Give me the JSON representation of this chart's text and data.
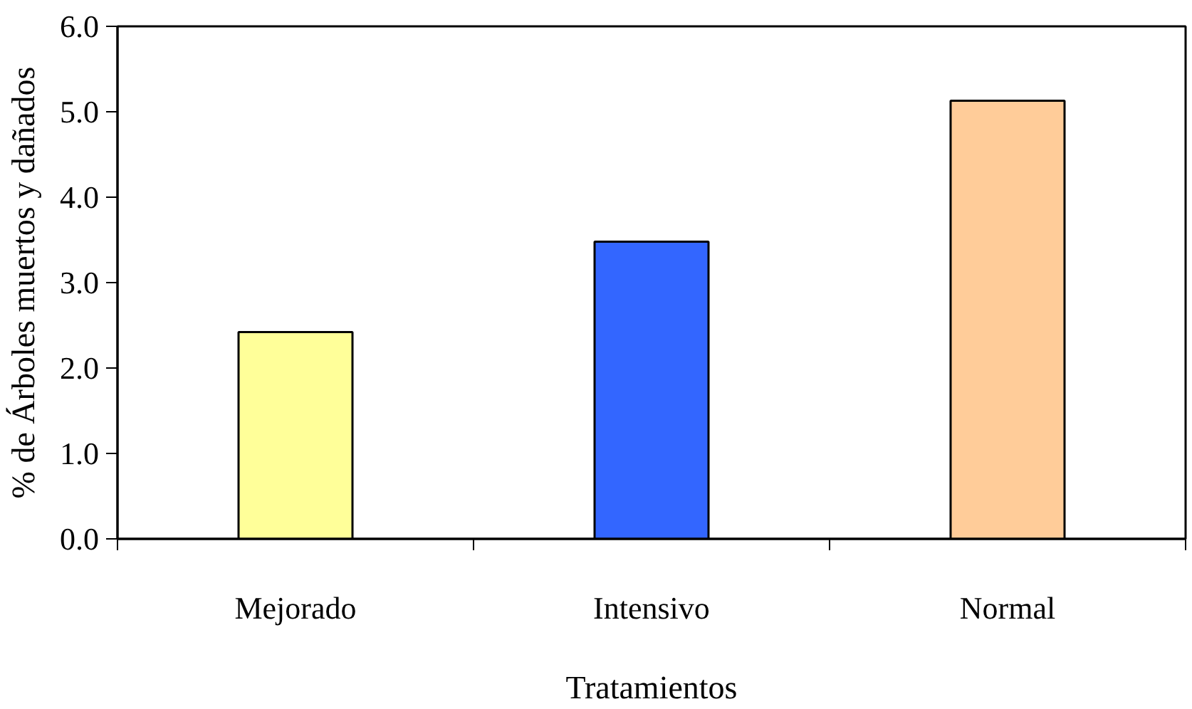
{
  "chart_data": {
    "type": "bar",
    "xlabel": "Tratamientos",
    "ylabel": "% de Árboles muertos y dañados",
    "categories": [
      "Mejorado",
      "Intensivo",
      "Normal"
    ],
    "values": [
      2.42,
      3.48,
      5.13
    ],
    "colors": [
      "#ffff99",
      "#3366ff",
      "#ffcc99"
    ],
    "ylim": [
      0,
      6
    ],
    "yticks": [
      {
        "value": 0,
        "label": "0.0"
      },
      {
        "value": 1,
        "label": "1.0"
      },
      {
        "value": 2,
        "label": "2.0"
      },
      {
        "value": 3,
        "label": "3.0"
      },
      {
        "value": 4,
        "label": "4.0"
      },
      {
        "value": 5,
        "label": "5.0"
      },
      {
        "value": 6,
        "label": "6.0"
      }
    ],
    "grid": false
  }
}
